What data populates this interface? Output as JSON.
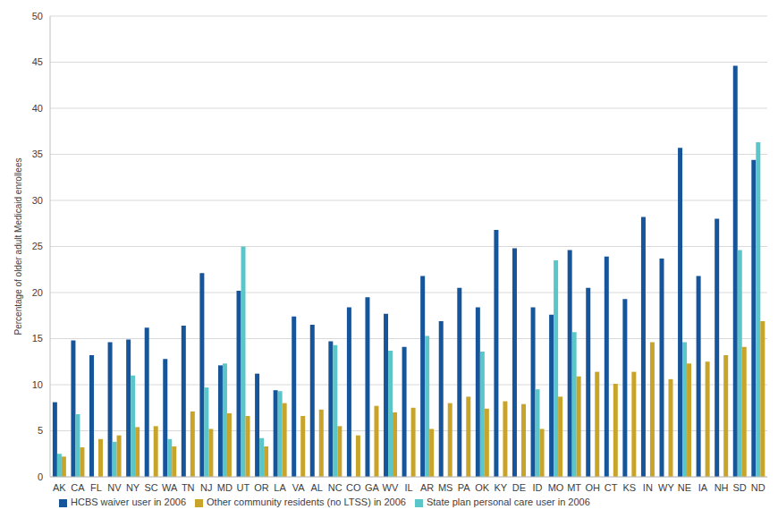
{
  "chart_data": {
    "type": "bar",
    "y_label": "Percentage of older adult Medicaid enrollees",
    "categories": [
      "AK",
      "CA",
      "FL",
      "NV",
      "NY",
      "SC",
      "WA",
      "TN",
      "NJ",
      "MD",
      "UT",
      "OR",
      "LA",
      "VA",
      "AL",
      "NC",
      "CO",
      "GA",
      "WV",
      "IL",
      "AR",
      "MS",
      "PA",
      "OK",
      "KY",
      "DE",
      "ID",
      "MO",
      "MT",
      "OH",
      "CT",
      "KS",
      "IN",
      "WY",
      "NE",
      "IA",
      "NH",
      "SD",
      "ND"
    ],
    "series": [
      {
        "name": "HCBS waiver user in 2006",
        "color": "#17559b",
        "values": [
          8.1,
          14.8,
          13.2,
          14.6,
          14.9,
          16.2,
          12.8,
          16.4,
          22.1,
          12.1,
          20.2,
          11.2,
          9.4,
          17.4,
          16.5,
          14.7,
          18.4,
          19.5,
          17.7,
          14.1,
          21.8,
          16.9,
          20.5,
          18.4,
          26.8,
          24.8,
          18.4,
          17.6,
          24.6,
          20.5,
          23.9,
          19.3,
          28.2,
          23.7,
          35.7,
          21.8,
          28.0,
          44.6,
          34.4
        ]
      },
      {
        "name": "State plan personal care user in 2006",
        "color": "#5bc6c9",
        "values": [
          2.5,
          6.8,
          null,
          3.8,
          11.0,
          null,
          4.1,
          null,
          9.7,
          12.3,
          25.0,
          4.2,
          9.3,
          null,
          null,
          14.3,
          null,
          null,
          13.7,
          null,
          15.3,
          null,
          null,
          13.6,
          null,
          null,
          9.5,
          23.5,
          15.7,
          null,
          null,
          null,
          null,
          null,
          14.6,
          null,
          null,
          24.6,
          36.3
        ]
      },
      {
        "name": "Other community residents (no LTSS) in 2006",
        "color": "#c8a52a",
        "values": [
          2.2,
          3.2,
          4.1,
          4.5,
          5.4,
          5.5,
          3.3,
          7.1,
          5.2,
          6.9,
          6.6,
          3.3,
          8.0,
          6.6,
          7.3,
          5.5,
          4.5,
          7.7,
          7.0,
          7.5,
          5.2,
          8.0,
          8.7,
          7.4,
          8.2,
          7.9,
          5.2,
          8.7,
          10.9,
          11.4,
          10.1,
          11.4,
          14.6,
          10.6,
          12.3,
          12.5,
          13.2,
          14.1,
          16.9
        ]
      }
    ],
    "ylim": [
      0,
      50
    ],
    "yticks": [
      0,
      5,
      10,
      15,
      20,
      25,
      30,
      35,
      40,
      45,
      50
    ],
    "grid": true,
    "legend": "bottom"
  }
}
